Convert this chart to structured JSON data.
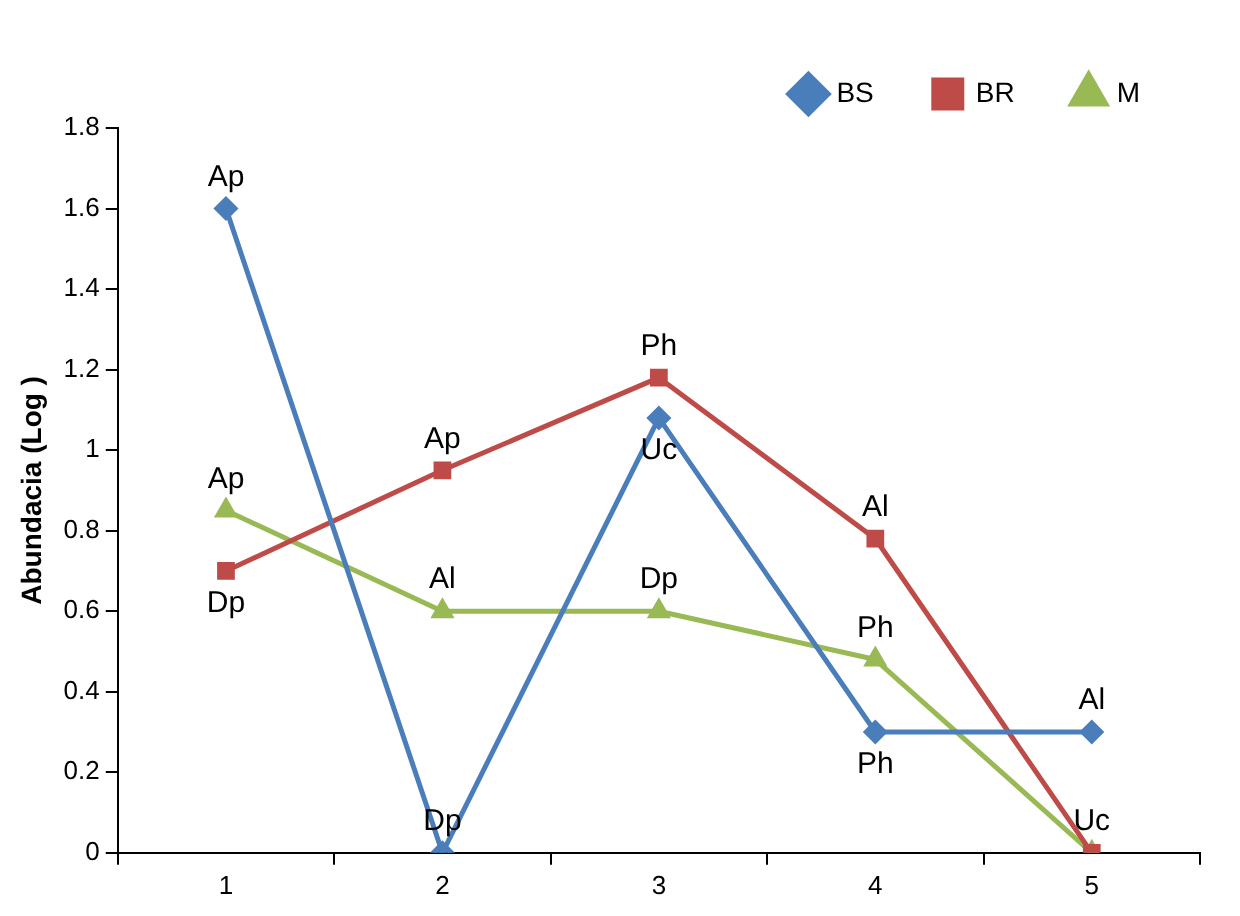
{
  "chart_data": {
    "type": "line",
    "ylabel": "Abundacia (Log )",
    "categories": [
      "1",
      "2",
      "3",
      "4",
      "5"
    ],
    "series": [
      {
        "name": "BS",
        "color": "#4a7ebb",
        "marker": "diamond",
        "values": [
          1.6,
          0,
          1.08,
          0.3,
          0.3
        ]
      },
      {
        "name": "BR",
        "color": "#be4b48",
        "marker": "square",
        "values": [
          0.7,
          0.95,
          1.18,
          0.78,
          0
        ]
      },
      {
        "name": "M",
        "color": "#98b954",
        "marker": "triangle",
        "values": [
          0.85,
          0.6,
          0.6,
          0.48,
          0
        ]
      }
    ],
    "ylim": [
      0,
      1.8
    ],
    "yticks": [
      0,
      0.2,
      0.4,
      0.6,
      0.8,
      1,
      1.2,
      1.4,
      1.6,
      1.8
    ],
    "grid": false,
    "legend": "top right",
    "annotations": [
      {
        "text": "Ap",
        "x": "1",
        "y": 1.6
      },
      {
        "text": "Dp",
        "x": "2",
        "y": 0
      },
      {
        "text": "Uc",
        "x": "3",
        "y": 1.08
      },
      {
        "text": "Ph",
        "x": "4",
        "y": 0.3
      },
      {
        "text": "Al",
        "x": "5",
        "y": 0.3
      },
      {
        "text": "Dp",
        "x": "1",
        "y": 0.7
      },
      {
        "text": "Ap",
        "x": "2",
        "y": 0.95
      },
      {
        "text": "Ph",
        "x": "3",
        "y": 1.18
      },
      {
        "text": "Al",
        "x": "4",
        "y": 0.78
      },
      {
        "text": "Uc",
        "x": "5",
        "y": 0
      },
      {
        "text": "Ap",
        "x": "1",
        "y": 0.85
      },
      {
        "text": "Al",
        "x": "2",
        "y": 0.6
      },
      {
        "text": "Dp",
        "x": "3",
        "y": 0.6
      },
      {
        "text": "Ph",
        "x": "4",
        "y": 0.48
      }
    ]
  }
}
